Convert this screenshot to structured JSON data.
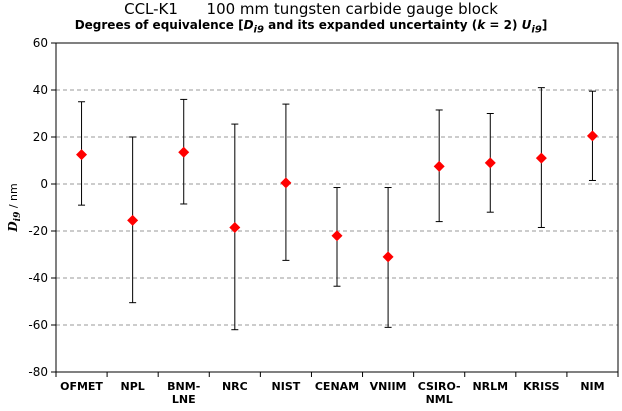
{
  "chart_data": {
    "type": "scatter",
    "title": "CCL-K1      100 mm tungsten carbide gauge block",
    "subtitle_parts": {
      "prefix": "Degrees of equivalence [",
      "d": "D",
      "d_sub": "i9",
      "middle": " and its expanded uncertainty (",
      "k": "k",
      "k_eq": " = 2) ",
      "u": "U",
      "u_sub": "i9",
      "suffix": "]"
    },
    "ylabel": "D",
    "ylabel_sub": "i9",
    "ylabel_unit": " / nm",
    "ylim": [
      -80,
      60
    ],
    "yticks": [
      -80,
      -60,
      -40,
      -20,
      0,
      20,
      40,
      60
    ],
    "grid": "horizontal dashed",
    "marker_color": "#ff0000",
    "categories": [
      [
        "OFMET"
      ],
      [
        "NPL"
      ],
      [
        "BNM-",
        "LNE"
      ],
      [
        "NRC"
      ],
      [
        "NIST"
      ],
      [
        "CENAM"
      ],
      [
        "VNIIM"
      ],
      [
        "CSIRO-",
        "NML"
      ],
      [
        "NRLM"
      ],
      [
        "KRISS"
      ],
      [
        "NIM"
      ]
    ],
    "values": [
      12.5,
      -15.5,
      13.5,
      -18.5,
      0.5,
      -22,
      -31,
      7.5,
      9,
      11,
      20.5
    ],
    "upper": [
      35,
      20,
      36,
      25.5,
      34,
      -1.5,
      -1.5,
      31.5,
      30,
      41,
      39.5
    ],
    "lower": [
      -9,
      -50.5,
      -8.5,
      -62,
      -32.5,
      -43.5,
      -61,
      -16,
      -12,
      -18.5,
      1.5
    ]
  }
}
